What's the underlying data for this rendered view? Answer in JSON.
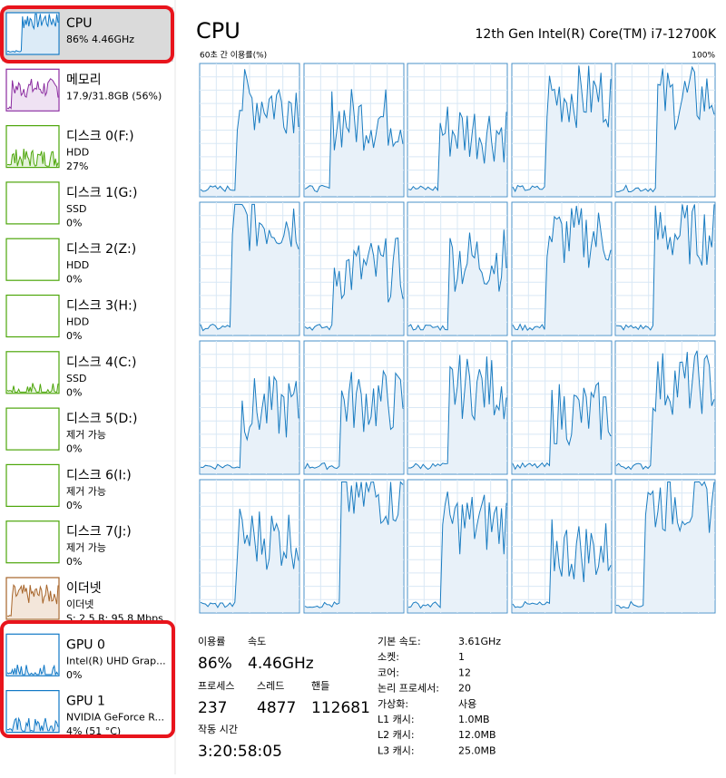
{
  "sidebar": {
    "items": [
      {
        "title": "CPU",
        "lines": [
          "86% 4.46GHz"
        ]
      },
      {
        "title": "메모리",
        "lines": [
          "17.9/31.8GB (56%)"
        ]
      },
      {
        "title": "디스크 0(F:)",
        "lines": [
          "HDD",
          "27%"
        ]
      },
      {
        "title": "디스크 1(G:)",
        "lines": [
          "SSD",
          "0%"
        ]
      },
      {
        "title": "디스크 2(Z:)",
        "lines": [
          "HDD",
          "0%"
        ]
      },
      {
        "title": "디스크 3(H:)",
        "lines": [
          "HDD",
          "0%"
        ]
      },
      {
        "title": "디스크 4(C:)",
        "lines": [
          "SSD",
          "0%"
        ]
      },
      {
        "title": "디스크 5(D:)",
        "lines": [
          "제거 가능",
          "0%"
        ]
      },
      {
        "title": "디스크 6(I:)",
        "lines": [
          "제거 가능",
          "0%"
        ]
      },
      {
        "title": "디스크 7(J:)",
        "lines": [
          "제거 가능",
          "0%"
        ]
      },
      {
        "title": "이더넷",
        "lines": [
          "이더넷",
          "S: 2.5  R: 95.8 Mbps"
        ]
      },
      {
        "title": "GPU 0",
        "lines": [
          "Intel(R) UHD Grap...",
          "0%"
        ]
      },
      {
        "title": "GPU 1",
        "lines": [
          "NVIDIA GeForce R...",
          "4% (51 °C)"
        ]
      }
    ]
  },
  "main": {
    "title": "CPU",
    "processor": "12th Gen Intel(R) Core(TM) i7-12700K",
    "graph_label": "60초 간 이용률(%)",
    "graph_max": "100%"
  },
  "stats": [
    {
      "label": "이용률",
      "value": "86%"
    },
    {
      "label": "속도",
      "value": "4.46GHz"
    },
    {
      "label": "프로세스",
      "value": "237"
    },
    {
      "label": "스레드",
      "value": "4877"
    },
    {
      "label": "핸들",
      "value": "112681"
    },
    {
      "label": "작동 시간",
      "value": "3:20:58:05"
    }
  ],
  "details": [
    {
      "label": "기본 속도:",
      "value": "3.61GHz"
    },
    {
      "label": "소켓:",
      "value": "1"
    },
    {
      "label": "코어:",
      "value": "12"
    },
    {
      "label": "논리 프로세서:",
      "value": "20"
    },
    {
      "label": "가상화:",
      "value": "사용"
    },
    {
      "label": "L1 캐시:",
      "value": "1.0MB"
    },
    {
      "label": "L2 캐시:",
      "value": "12.0MB"
    },
    {
      "label": "L3 캐시:",
      "value": "25.0MB"
    }
  ]
}
